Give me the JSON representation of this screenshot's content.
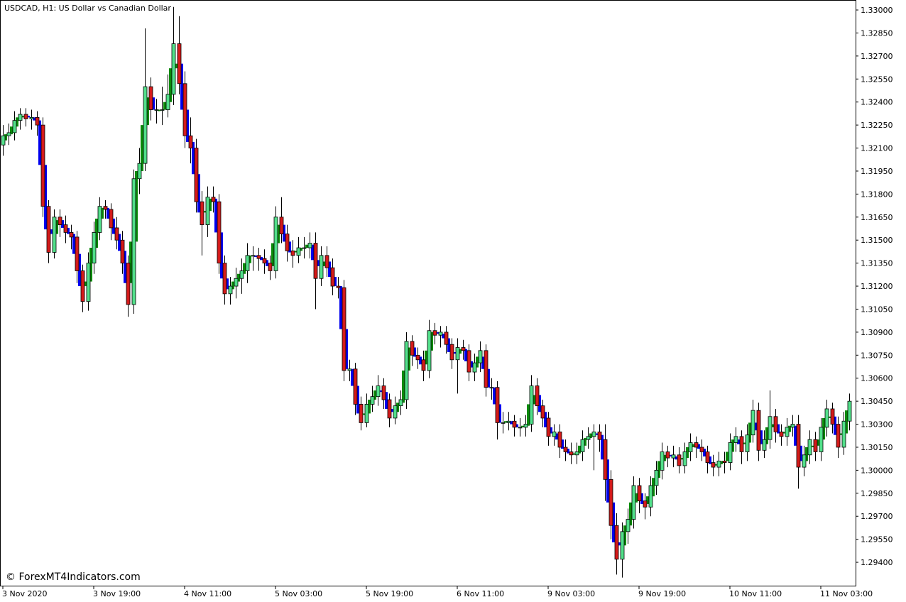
{
  "chart_data": {
    "type": "candlestick",
    "title": "USDCAD, H1:  US Dollar vs Canadian Dollar",
    "watermark": "© ForexMT4Indicators.com",
    "up_color": "#52e08a",
    "down_color": "#d41a1a",
    "outline_color": "#000000",
    "ylim": [
      1.29243,
      1.33065
    ],
    "yticks": [
      {
        "value": 1.33,
        "label": "1.33000"
      },
      {
        "value": 1.3285,
        "label": "1.32850"
      },
      {
        "value": 1.327,
        "label": "1.32700"
      },
      {
        "value": 1.3255,
        "label": "1.32550"
      },
      {
        "value": 1.324,
        "label": "1.32400"
      },
      {
        "value": 1.3225,
        "label": "1.32250"
      },
      {
        "value": 1.321,
        "label": "1.32100"
      },
      {
        "value": 1.3195,
        "label": "1.31950"
      },
      {
        "value": 1.318,
        "label": "1.31800"
      },
      {
        "value": 1.3165,
        "label": "1.31650"
      },
      {
        "value": 1.315,
        "label": "1.31500"
      },
      {
        "value": 1.3135,
        "label": "1.31350"
      },
      {
        "value": 1.312,
        "label": "1.31200"
      },
      {
        "value": 1.3105,
        "label": "1.31050"
      },
      {
        "value": 1.309,
        "label": "1.30900"
      },
      {
        "value": 1.3075,
        "label": "1.30750"
      },
      {
        "value": 1.306,
        "label": "1.30600"
      },
      {
        "value": 1.3045,
        "label": "1.30450"
      },
      {
        "value": 1.303,
        "label": "1.30300"
      },
      {
        "value": 1.3015,
        "label": "1.30150"
      },
      {
        "value": 1.3,
        "label": "1.30000"
      },
      {
        "value": 1.2985,
        "label": "1.29850"
      },
      {
        "value": 1.297,
        "label": "1.29700"
      },
      {
        "value": 1.2955,
        "label": "1.29550"
      },
      {
        "value": 1.294,
        "label": "1.29400"
      }
    ],
    "xticks": [
      {
        "value": 0,
        "label": "3 Nov 2020"
      },
      {
        "value": 16,
        "label": "3 Nov 19:00"
      },
      {
        "value": 32,
        "label": "4 Nov 11:00"
      },
      {
        "value": 48,
        "label": "5 Nov 03:00"
      },
      {
        "value": 64,
        "label": "5 Nov 19:00"
      },
      {
        "value": 80,
        "label": "6 Nov 11:00"
      },
      {
        "value": 96,
        "label": "9 Nov 03:00"
      },
      {
        "value": 112,
        "label": "9 Nov 19:00"
      },
      {
        "value": 128,
        "label": "10 Nov 11:00"
      },
      {
        "value": 144,
        "label": "11 Nov 03:00"
      }
    ],
    "candles": [
      [
        1.3212,
        1.3225,
        1.3205,
        1.3218
      ],
      [
        1.3218,
        1.3226,
        1.3212,
        1.322
      ],
      [
        1.322,
        1.3234,
        1.3215,
        1.3228
      ],
      [
        1.3228,
        1.3236,
        1.3222,
        1.3232
      ],
      [
        1.3232,
        1.3236,
        1.3224,
        1.3229
      ],
      [
        1.3229,
        1.3235,
        1.3222,
        1.323
      ],
      [
        1.323,
        1.3234,
        1.3218,
        1.3225
      ],
      [
        1.3225,
        1.323,
        1.3165,
        1.3172
      ],
      [
        1.3172,
        1.3176,
        1.3135,
        1.3142
      ],
      [
        1.3142,
        1.317,
        1.3138,
        1.3165
      ],
      [
        1.3165,
        1.317,
        1.3152,
        1.316
      ],
      [
        1.316,
        1.3166,
        1.3148,
        1.3155
      ],
      [
        1.3155,
        1.316,
        1.3144,
        1.3152
      ],
      [
        1.3152,
        1.3156,
        1.3122,
        1.313
      ],
      [
        1.313,
        1.3134,
        1.3103,
        1.311
      ],
      [
        1.311,
        1.3142,
        1.3104,
        1.3135
      ],
      [
        1.3135,
        1.3162,
        1.3128,
        1.3155
      ],
      [
        1.3155,
        1.3178,
        1.315,
        1.3172
      ],
      [
        1.3172,
        1.3176,
        1.3164,
        1.317
      ],
      [
        1.317,
        1.3174,
        1.315,
        1.3158
      ],
      [
        1.3158,
        1.3165,
        1.3144,
        1.315
      ],
      [
        1.315,
        1.3156,
        1.3128,
        1.3135
      ],
      [
        1.3135,
        1.314,
        1.31,
        1.3108
      ],
      [
        1.3108,
        1.3196,
        1.3102,
        1.319
      ],
      [
        1.319,
        1.321,
        1.318,
        1.32
      ],
      [
        1.32,
        1.3288,
        1.3195,
        1.325
      ],
      [
        1.325,
        1.3256,
        1.3228,
        1.3235
      ],
      [
        1.3235,
        1.3242,
        1.3226,
        1.3235
      ],
      [
        1.3235,
        1.325,
        1.3225,
        1.3235
      ],
      [
        1.3235,
        1.3258,
        1.323,
        1.3245
      ],
      [
        1.3245,
        1.3302,
        1.3238,
        1.3278
      ],
      [
        1.3278,
        1.3296,
        1.3245,
        1.3252
      ],
      [
        1.3252,
        1.326,
        1.321,
        1.3218
      ],
      [
        1.3218,
        1.323,
        1.32,
        1.321
      ],
      [
        1.321,
        1.3216,
        1.3168,
        1.3175
      ],
      [
        1.3175,
        1.3182,
        1.314,
        1.316
      ],
      [
        1.316,
        1.3185,
        1.3152,
        1.3178
      ],
      [
        1.3178,
        1.3185,
        1.3168,
        1.3175
      ],
      [
        1.3175,
        1.318,
        1.3128,
        1.3135
      ],
      [
        1.3135,
        1.314,
        1.3108,
        1.3115
      ],
      [
        1.3115,
        1.3126,
        1.3108,
        1.312
      ],
      [
        1.312,
        1.3132,
        1.3112,
        1.3125
      ],
      [
        1.3125,
        1.3138,
        1.3115,
        1.313
      ],
      [
        1.313,
        1.3148,
        1.3122,
        1.314
      ],
      [
        1.314,
        1.3146,
        1.313,
        1.314
      ],
      [
        1.314,
        1.3145,
        1.313,
        1.3138
      ],
      [
        1.3138,
        1.3144,
        1.3128,
        1.3135
      ],
      [
        1.3135,
        1.314,
        1.3124,
        1.313
      ],
      [
        1.313,
        1.3172,
        1.3125,
        1.3165
      ],
      [
        1.3165,
        1.3178,
        1.3148,
        1.3154
      ],
      [
        1.3154,
        1.316,
        1.3136,
        1.3143
      ],
      [
        1.3143,
        1.315,
        1.3132,
        1.314
      ],
      [
        1.314,
        1.3152,
        1.3135,
        1.3145
      ],
      [
        1.3145,
        1.3152,
        1.3138,
        1.3145
      ],
      [
        1.3145,
        1.3155,
        1.3138,
        1.3148
      ],
      [
        1.3148,
        1.3155,
        1.3105,
        1.3125
      ],
      [
        1.3125,
        1.3146,
        1.312,
        1.314
      ],
      [
        1.314,
        1.3146,
        1.3126,
        1.3132
      ],
      [
        1.3132,
        1.3138,
        1.3114,
        1.312
      ],
      [
        1.312,
        1.3126,
        1.3112,
        1.3119
      ],
      [
        1.3119,
        1.3124,
        1.3058,
        1.3065
      ],
      [
        1.3065,
        1.3072,
        1.3058,
        1.3066
      ],
      [
        1.3066,
        1.307,
        1.3036,
        1.3043
      ],
      [
        1.3043,
        1.3048,
        1.3026,
        1.3031
      ],
      [
        1.3031,
        1.305,
        1.3028,
        1.3043
      ],
      [
        1.3043,
        1.3055,
        1.3038,
        1.3048
      ],
      [
        1.3048,
        1.3062,
        1.3042,
        1.3055
      ],
      [
        1.3055,
        1.306,
        1.304,
        1.3046
      ],
      [
        1.3046,
        1.305,
        1.3028,
        1.3034
      ],
      [
        1.3034,
        1.3048,
        1.303,
        1.3042
      ],
      [
        1.3042,
        1.3052,
        1.3036,
        1.3046
      ],
      [
        1.3046,
        1.309,
        1.304,
        1.3084
      ],
      [
        1.3084,
        1.3088,
        1.3068,
        1.3075
      ],
      [
        1.3075,
        1.308,
        1.3066,
        1.3072
      ],
      [
        1.3072,
        1.3078,
        1.3058,
        1.3065
      ],
      [
        1.3065,
        1.3098,
        1.306,
        1.3091
      ],
      [
        1.3091,
        1.3096,
        1.3082,
        1.3088
      ],
      [
        1.3088,
        1.3094,
        1.308,
        1.309
      ],
      [
        1.309,
        1.3094,
        1.3076,
        1.3082
      ],
      [
        1.3082,
        1.3086,
        1.3066,
        1.3072
      ],
      [
        1.3072,
        1.3086,
        1.305,
        1.308
      ],
      [
        1.308,
        1.3085,
        1.3072,
        1.3078
      ],
      [
        1.3078,
        1.3082,
        1.3058,
        1.3064
      ],
      [
        1.3064,
        1.3076,
        1.3058,
        1.307
      ],
      [
        1.307,
        1.3084,
        1.3064,
        1.3078
      ],
      [
        1.3078,
        1.3082,
        1.3048,
        1.3054
      ],
      [
        1.3054,
        1.306,
        1.3046,
        1.3054
      ],
      [
        1.3054,
        1.3058,
        1.302,
        1.3031
      ],
      [
        1.3031,
        1.3038,
        1.3024,
        1.3031
      ],
      [
        1.3031,
        1.3038,
        1.3026,
        1.3032
      ],
      [
        1.3032,
        1.3036,
        1.3022,
        1.3028
      ],
      [
        1.3028,
        1.3034,
        1.3022,
        1.3028
      ],
      [
        1.3028,
        1.3036,
        1.3022,
        1.303
      ],
      [
        1.303,
        1.3062,
        1.3025,
        1.3055
      ],
      [
        1.3055,
        1.306,
        1.3036,
        1.3042
      ],
      [
        1.3042,
        1.3046,
        1.3028,
        1.3034
      ],
      [
        1.3034,
        1.3038,
        1.3016,
        1.3022
      ],
      [
        1.3022,
        1.303,
        1.3016,
        1.3025
      ],
      [
        1.3025,
        1.303,
        1.3008,
        1.3015
      ],
      [
        1.3015,
        1.302,
        1.3006,
        1.3012
      ],
      [
        1.3012,
        1.3018,
        1.3004,
        1.301
      ],
      [
        1.301,
        1.3018,
        1.3004,
        1.3012
      ],
      [
        1.3012,
        1.3026,
        1.3006,
        1.302
      ],
      [
        1.302,
        1.3028,
        1.3014,
        1.3022
      ],
      [
        1.3022,
        1.303,
        1.3,
        1.3025
      ],
      [
        1.3025,
        1.303,
        1.3012,
        1.302
      ],
      [
        1.302,
        1.303,
        1.298,
        1.2994
      ],
      [
        1.2994,
        1.3,
        1.2955,
        1.2964
      ],
      [
        1.2964,
        1.2972,
        1.2932,
        1.2942
      ],
      [
        1.2942,
        1.2966,
        1.293,
        1.296
      ],
      [
        1.296,
        1.2975,
        1.2952,
        1.2968
      ],
      [
        1.2968,
        1.2996,
        1.2962,
        1.299
      ],
      [
        1.299,
        1.2995,
        1.2972,
        1.298
      ],
      [
        1.298,
        1.2985,
        1.2968,
        1.2976
      ],
      [
        1.2976,
        1.2996,
        1.297,
        1.299
      ],
      [
        1.299,
        1.3006,
        1.2984,
        1.3
      ],
      [
        1.3,
        1.3018,
        1.2994,
        1.3012
      ],
      [
        1.3012,
        1.3016,
        1.3002,
        1.3008
      ],
      [
        1.3008,
        1.3016,
        1.3002,
        1.301
      ],
      [
        1.301,
        1.3015,
        1.2998,
        1.3003
      ],
      [
        1.3003,
        1.3018,
        1.2998,
        1.3012
      ],
      [
        1.3012,
        1.3024,
        1.3006,
        1.3018
      ],
      [
        1.3018,
        1.3022,
        1.3008,
        1.3015
      ],
      [
        1.3015,
        1.302,
        1.3006,
        1.3012
      ],
      [
        1.3012,
        1.3016,
        1.2998,
        1.3005
      ],
      [
        1.3005,
        1.301,
        1.2996,
        1.3002
      ],
      [
        1.3002,
        1.3012,
        1.2996,
        1.3006
      ],
      [
        1.3006,
        1.3012,
        1.2998,
        1.3005
      ],
      [
        1.3005,
        1.3024,
        1.3,
        1.3018
      ],
      [
        1.3018,
        1.3028,
        1.3012,
        1.3022
      ],
      [
        1.3022,
        1.3026,
        1.3004,
        1.3012
      ],
      [
        1.3012,
        1.303,
        1.3006,
        1.3023
      ],
      [
        1.3023,
        1.3046,
        1.3018,
        1.3039
      ],
      [
        1.3039,
        1.3044,
        1.3006,
        1.3013
      ],
      [
        1.3013,
        1.3026,
        1.3008,
        1.302
      ],
      [
        1.302,
        1.3052,
        1.3014,
        1.3035
      ],
      [
        1.3035,
        1.304,
        1.3018,
        1.3025
      ],
      [
        1.3025,
        1.303,
        1.3016,
        1.3022
      ],
      [
        1.3022,
        1.3034,
        1.3016,
        1.3028
      ],
      [
        1.3028,
        1.3036,
        1.3022,
        1.303
      ],
      [
        1.303,
        1.3036,
        1.2988,
        1.3002
      ],
      [
        1.3002,
        1.3016,
        1.2996,
        1.301
      ],
      [
        1.301,
        1.3026,
        1.3004,
        1.302
      ],
      [
        1.302,
        1.3025,
        1.3006,
        1.3012
      ],
      [
        1.3012,
        1.3034,
        1.3006,
        1.3028
      ],
      [
        1.3028,
        1.3046,
        1.3022,
        1.304
      ],
      [
        1.304,
        1.3044,
        1.3024,
        1.303
      ],
      [
        1.303,
        1.3035,
        1.3008,
        1.3015
      ],
      [
        1.3015,
        1.3038,
        1.301,
        1.3032
      ],
      [
        1.3032,
        1.305,
        1.3026,
        1.3045
      ]
    ],
    "indicator": {
      "up_color": "#0a8a0a",
      "down_color": "#0000ee",
      "values": [
        1.3215,
        1.3219,
        1.3224,
        1.323,
        1.3231,
        1.323,
        1.3228,
        1.3199,
        1.3157,
        1.3154,
        1.3163,
        1.3158,
        1.3154,
        1.3141,
        1.312,
        1.3123,
        1.3145,
        1.3164,
        1.3171,
        1.3164,
        1.3154,
        1.3143,
        1.3122,
        1.3149,
        1.3195,
        1.3225,
        1.3243,
        1.3235,
        1.3235,
        1.324,
        1.3262,
        1.3265,
        1.3235,
        1.3214,
        1.3193,
        1.3168,
        1.3169,
        1.3177,
        1.3155,
        1.3125,
        1.3118,
        1.3123,
        1.3128,
        1.3135,
        1.314,
        1.3139,
        1.3137,
        1.3133,
        1.3148,
        1.316,
        1.3149,
        1.3142,
        1.3143,
        1.3145,
        1.3147,
        1.3137,
        1.3133,
        1.3136,
        1.3126,
        1.312,
        1.3092,
        1.3066,
        1.3055,
        1.3037,
        1.3037,
        1.3046,
        1.3052,
        1.3051,
        1.304,
        1.3038,
        1.3044,
        1.3065,
        1.308,
        1.3074,
        1.3069,
        1.3078,
        1.309,
        1.3089,
        1.3086,
        1.3077,
        1.3076,
        1.3079,
        1.3071,
        1.3067,
        1.3074,
        1.3066,
        1.3054,
        1.3043,
        1.3031,
        1.3032,
        1.303,
        1.3028,
        1.3029,
        1.3043,
        1.3049,
        1.3038,
        1.3028,
        1.3024,
        1.302,
        1.3014,
        1.3011,
        1.3011,
        1.3016,
        1.3021,
        1.3024,
        1.3023,
        1.3007,
        1.2979,
        1.2953,
        1.2951,
        1.2964,
        1.2979,
        1.2985,
        1.2978,
        1.2983,
        1.2995,
        1.3006,
        1.301,
        1.3009,
        1.3007,
        1.3008,
        1.3015,
        1.3017,
        1.3014,
        1.3009,
        1.3004,
        1.3004,
        1.3006,
        1.3012,
        1.302,
        1.3017,
        1.3018,
        1.3031,
        1.3026,
        1.3017,
        1.3028,
        1.303,
        1.3024,
        1.3025,
        1.3029,
        1.3016,
        1.3006,
        1.3015,
        1.3016,
        1.302,
        1.3034,
        1.3035,
        1.3023,
        1.3024,
        1.3039
      ]
    }
  }
}
